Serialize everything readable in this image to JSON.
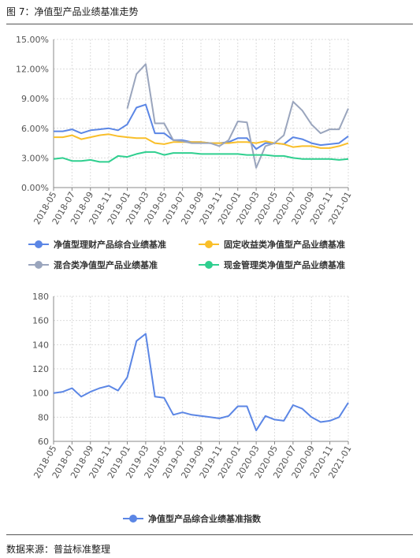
{
  "figure": {
    "title": "图 7：净值型产品业绩基准走势",
    "source": "数据来源：普益标准整理"
  },
  "colors": {
    "blue": "#5b86e5",
    "yellow": "#f9bf2a",
    "gray": "#9aa5bd",
    "green": "#2fcf8f",
    "grid": "#dcdcdc"
  },
  "chart_data": [
    {
      "type": "line",
      "categories": [
        "2018-05",
        "2018-06",
        "2018-07",
        "2018-08",
        "2018-09",
        "2018-10",
        "2018-11",
        "2018-12",
        "2019-01",
        "2019-02",
        "2019-03",
        "2019-04",
        "2019-05",
        "2019-06",
        "2019-07",
        "2019-08",
        "2019-09",
        "2019-10",
        "2019-11",
        "2019-12",
        "2020-01",
        "2020-02",
        "2020-03",
        "2020-04",
        "2020-05",
        "2020-06",
        "2020-07",
        "2020-08",
        "2020-09",
        "2020-10",
        "2020-11",
        "2020-12",
        "2021-01"
      ],
      "x_tick_labels": [
        "2018-05",
        "2018-07",
        "2018-09",
        "2018-11",
        "2019-01",
        "2019-03",
        "2019-05",
        "2019-07",
        "2019-09",
        "2019-11",
        "2020-01",
        "2020-03",
        "2020-05",
        "2020-07",
        "2020-09",
        "2020-11",
        "2021-01"
      ],
      "y_ticks": [
        "0.00%",
        "3.00%",
        "6.00%",
        "9.00%",
        "12.00%",
        "15.00%"
      ],
      "ylim": [
        0,
        15
      ],
      "grid": true,
      "legend_position": "bottom",
      "series": [
        {
          "name": "净值型理财产品综合业绩基准",
          "color": "#5b86e5",
          "values": [
            5.7,
            5.7,
            5.9,
            5.5,
            5.8,
            5.9,
            6.0,
            5.8,
            6.4,
            8.1,
            8.4,
            5.5,
            5.5,
            4.8,
            4.8,
            4.6,
            4.6,
            4.5,
            4.5,
            4.6,
            5.0,
            5.0,
            3.9,
            4.5,
            4.5,
            4.4,
            5.1,
            4.9,
            4.5,
            4.3,
            4.4,
            4.5,
            5.2
          ]
        },
        {
          "name": "固定收益类净值型产品业绩基准",
          "color": "#f9bf2a",
          "values": [
            5.1,
            5.1,
            5.3,
            4.9,
            5.1,
            5.3,
            5.4,
            5.2,
            5.1,
            5.0,
            5.0,
            4.5,
            4.4,
            4.6,
            4.6,
            4.6,
            4.6,
            4.5,
            4.5,
            4.5,
            4.6,
            4.6,
            4.5,
            4.7,
            4.5,
            4.4,
            4.1,
            4.2,
            4.2,
            4.0,
            4.0,
            4.2,
            4.5
          ]
        },
        {
          "name": "混合类净值型产品业绩基准",
          "color": "#9aa5bd",
          "values": [
            null,
            null,
            null,
            null,
            null,
            null,
            null,
            null,
            8.0,
            11.5,
            12.5,
            6.5,
            6.5,
            4.8,
            4.7,
            4.5,
            4.5,
            4.5,
            4.2,
            4.8,
            6.7,
            6.6,
            2.0,
            4.2,
            4.5,
            5.3,
            8.7,
            7.8,
            6.4,
            5.5,
            5.9,
            5.9,
            8.0
          ]
        },
        {
          "name": "现金管理类净值型产品业绩基准",
          "color": "#2fcf8f",
          "values": [
            2.9,
            3.0,
            2.7,
            2.7,
            2.8,
            2.6,
            2.6,
            3.2,
            3.1,
            3.4,
            3.6,
            3.6,
            3.3,
            3.5,
            3.5,
            3.5,
            3.4,
            3.4,
            3.4,
            3.4,
            3.4,
            3.3,
            3.3,
            3.3,
            3.2,
            3.2,
            3.0,
            2.9,
            2.9,
            2.9,
            2.9,
            2.8,
            2.9
          ]
        }
      ]
    },
    {
      "type": "line",
      "categories": [
        "2018-05",
        "2018-06",
        "2018-07",
        "2018-08",
        "2018-09",
        "2018-10",
        "2018-11",
        "2018-12",
        "2019-01",
        "2019-02",
        "2019-03",
        "2019-04",
        "2019-05",
        "2019-06",
        "2019-07",
        "2019-08",
        "2019-09",
        "2019-10",
        "2019-11",
        "2019-12",
        "2020-01",
        "2020-02",
        "2020-03",
        "2020-04",
        "2020-05",
        "2020-06",
        "2020-07",
        "2020-08",
        "2020-09",
        "2020-10",
        "2020-11",
        "2020-12",
        "2021-01"
      ],
      "x_tick_labels": [
        "2018-05",
        "2018-07",
        "2018-09",
        "2018-11",
        "2019-01",
        "2019-03",
        "2019-05",
        "2019-07",
        "2019-09",
        "2019-11",
        "2020-01",
        "2020-03",
        "2020-05",
        "2020-07",
        "2020-09",
        "2020-11",
        "2021-01"
      ],
      "y_ticks": [
        "60",
        "80",
        "100",
        "120",
        "140",
        "160",
        "180"
      ],
      "ylim": [
        60,
        180
      ],
      "grid": true,
      "legend_position": "bottom",
      "series": [
        {
          "name": "净值型产品综合业绩基准指数",
          "color": "#5b86e5",
          "values": [
            100,
            101,
            104,
            97,
            101,
            104,
            106,
            102,
            113,
            143,
            149,
            97,
            96,
            82,
            84,
            82,
            81,
            80,
            79,
            81,
            89,
            89,
            69,
            81,
            78,
            77,
            90,
            87,
            80,
            76,
            77,
            80,
            92
          ]
        }
      ]
    }
  ]
}
